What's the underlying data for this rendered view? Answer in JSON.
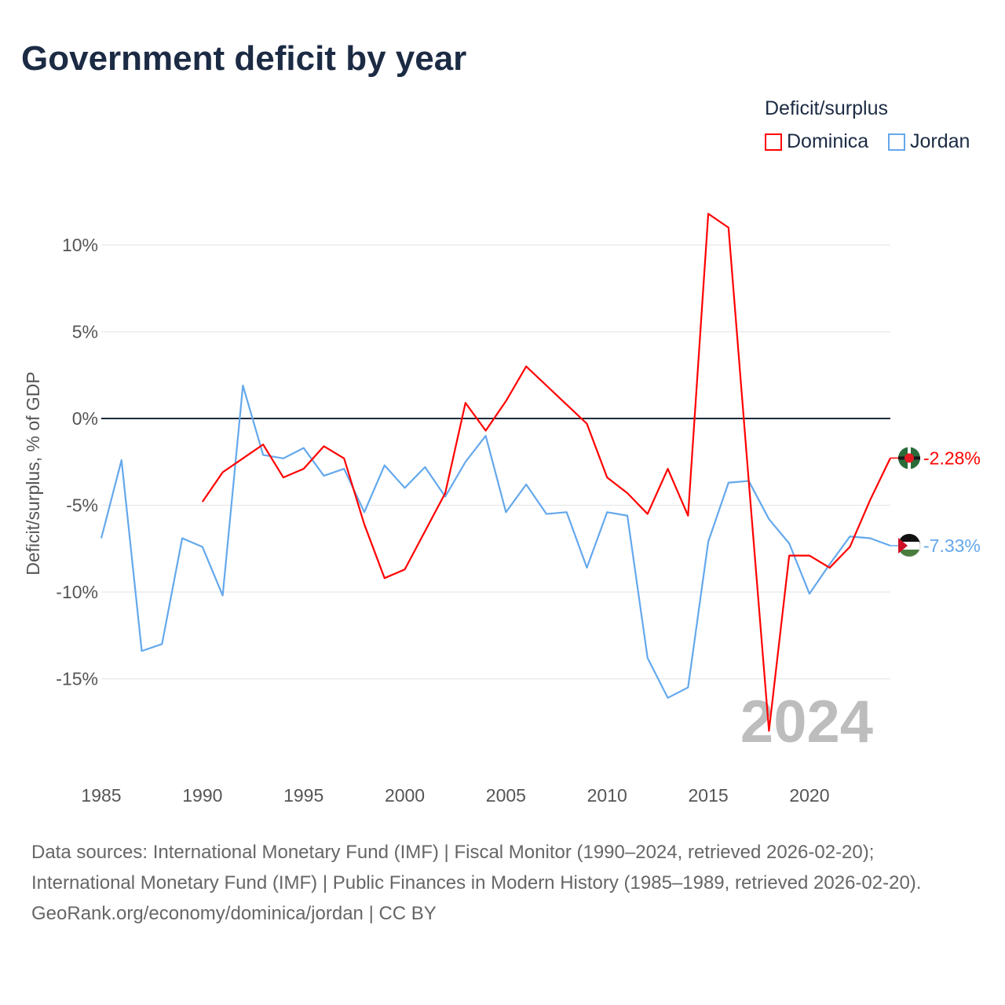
{
  "chart_data": {
    "type": "line",
    "title": "Government deficit by year",
    "xlabel": "",
    "ylabel": "Deficit/surplus, % of GDP",
    "xlim": [
      1985,
      2024
    ],
    "ylim": [
      -19,
      12.5
    ],
    "x_ticks": [
      1985,
      1990,
      1995,
      2000,
      2005,
      2010,
      2015,
      2020
    ],
    "x_tick_labels": [
      "1985",
      "1990",
      "1995",
      "2000",
      "2005",
      "2010",
      "2015",
      "2020"
    ],
    "y_ticks": [
      10,
      5,
      0,
      -5,
      -10,
      -15
    ],
    "y_tick_labels": [
      "10%",
      "5%",
      "0%",
      "-5%",
      "-10%",
      "-15%"
    ],
    "grid": true,
    "legend": {
      "title": "Deficit/surplus",
      "placement": "top-right"
    },
    "year_watermark": "2024",
    "series": [
      {
        "name": "Dominica",
        "color": "#ff0000",
        "end_label": "-2.28%",
        "flag_icon": "dominica-flag-icon",
        "x": [
          1990,
          1991,
          1992,
          1993,
          1994,
          1995,
          1996,
          1997,
          1998,
          1999,
          2000,
          2001,
          2002,
          2003,
          2004,
          2005,
          2006,
          2007,
          2008,
          2009,
          2010,
          2011,
          2012,
          2013,
          2014,
          2015,
          2016,
          2017,
          2018,
          2019,
          2020,
          2021,
          2022,
          2023,
          2024
        ],
        "values": [
          -4.8,
          -3.1,
          -2.3,
          -1.5,
          -3.4,
          -2.9,
          -1.6,
          -2.3,
          -6.1,
          -9.2,
          -8.7,
          -6.5,
          -4.3,
          0.9,
          -0.7,
          1.0,
          3.0,
          1.9,
          0.8,
          -0.3,
          -3.4,
          -4.3,
          -5.5,
          -2.9,
          -5.6,
          11.8,
          11.0,
          -3.6,
          -18.0,
          -7.9,
          -7.9,
          -8.6,
          -7.4,
          -4.7,
          -2.28
        ]
      },
      {
        "name": "Jordan",
        "color": "#64a8ec",
        "end_label": "-7.33%",
        "flag_icon": "jordan-flag-icon",
        "x": [
          1985,
          1986,
          1987,
          1988,
          1989,
          1990,
          1991,
          1992,
          1993,
          1994,
          1995,
          1996,
          1997,
          1998,
          1999,
          2000,
          2001,
          2002,
          2003,
          2004,
          2005,
          2006,
          2007,
          2008,
          2009,
          2010,
          2011,
          2012,
          2013,
          2014,
          2015,
          2016,
          2017,
          2018,
          2019,
          2020,
          2021,
          2022,
          2023,
          2024
        ],
        "values": [
          -6.9,
          -2.4,
          -13.4,
          -13.0,
          -6.9,
          -7.4,
          -10.2,
          1.9,
          -2.1,
          -2.3,
          -1.7,
          -3.3,
          -2.9,
          -5.4,
          -2.7,
          -4.0,
          -2.8,
          -4.5,
          -2.5,
          -1.0,
          -5.4,
          -3.8,
          -5.5,
          -5.4,
          -8.6,
          -5.4,
          -5.6,
          -13.8,
          -16.1,
          -15.5,
          -7.1,
          -3.7,
          -3.6,
          -5.8,
          -7.2,
          -10.1,
          -8.4,
          -6.8,
          -6.9,
          -7.33
        ]
      }
    ]
  },
  "footer": {
    "sources": "Data sources: International Monetary Fund (IMF) | Fiscal Monitor (1990–2024, retrieved 2026-02-20); International Monetary Fund (IMF) | Public Finances in Modern History (1985–1989, retrieved 2026-02-20).",
    "credit": "GeoRank.org/economy/dominica/jordan | CC BY"
  }
}
